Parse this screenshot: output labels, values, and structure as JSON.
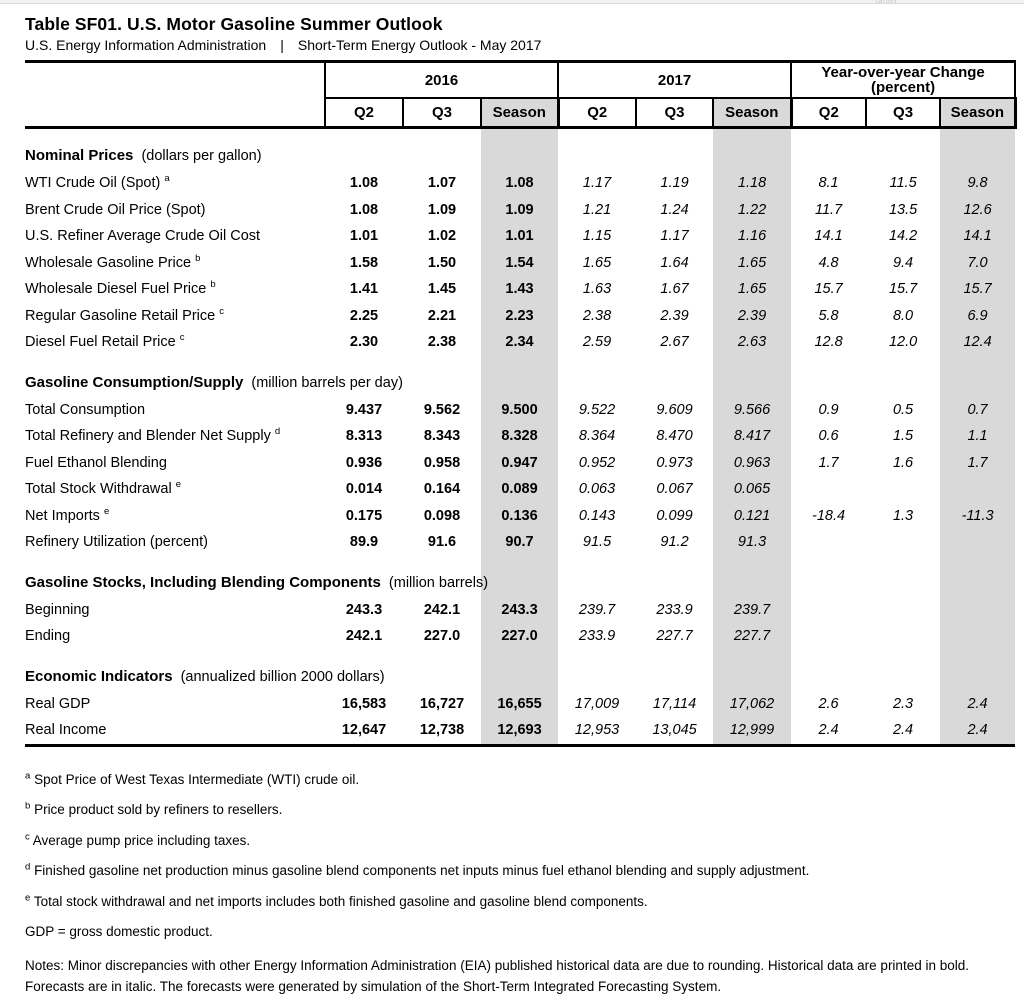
{
  "page": {
    "title": "Table SF01. U.S. Motor Gasoline Summer Outlook",
    "subtitle_left": "U.S. Energy Information Administration",
    "subtitle_separator": "|",
    "subtitle_right": "Short-Term Energy Outlook - May 2017",
    "top_artifact": "target"
  },
  "colors": {
    "season_band": "#d9d9d9",
    "rule": "#000000"
  },
  "table": {
    "col_groups": [
      {
        "line1": "2016",
        "line2": ""
      },
      {
        "line1": "2017",
        "line2": ""
      },
      {
        "line1": "Year-over-year Change",
        "line2": "(percent)"
      }
    ],
    "subheaders": [
      "Q2",
      "Q3",
      "Season",
      "Q2",
      "Q3",
      "Season",
      "Q2",
      "Q3",
      "Season"
    ],
    "sections": [
      {
        "name": "Nominal Prices",
        "unit": "(dollars per gallon)",
        "rows": [
          {
            "label": "WTI Crude Oil (Spot)",
            "sup": "a",
            "hist": [
              "1.08",
              "1.07",
              "1.08"
            ],
            "fc": [
              "1.17",
              "1.19",
              "1.18"
            ],
            "yoy": [
              "8.1",
              "11.5",
              "9.8"
            ]
          },
          {
            "label": "Brent Crude Oil Price (Spot)",
            "sup": "",
            "hist": [
              "1.08",
              "1.09",
              "1.09"
            ],
            "fc": [
              "1.21",
              "1.24",
              "1.22"
            ],
            "yoy": [
              "11.7",
              "13.5",
              "12.6"
            ]
          },
          {
            "label": "U.S. Refiner Average Crude Oil Cost",
            "sup": "",
            "hist": [
              "1.01",
              "1.02",
              "1.01"
            ],
            "fc": [
              "1.15",
              "1.17",
              "1.16"
            ],
            "yoy": [
              "14.1",
              "14.2",
              "14.1"
            ]
          },
          {
            "label": "Wholesale Gasoline Price",
            "sup": "b",
            "hist": [
              "1.58",
              "1.50",
              "1.54"
            ],
            "fc": [
              "1.65",
              "1.64",
              "1.65"
            ],
            "yoy": [
              "4.8",
              "9.4",
              "7.0"
            ]
          },
          {
            "label": "Wholesale Diesel Fuel Price",
            "sup": "b",
            "hist": [
              "1.41",
              "1.45",
              "1.43"
            ],
            "fc": [
              "1.63",
              "1.67",
              "1.65"
            ],
            "yoy": [
              "15.7",
              "15.7",
              "15.7"
            ]
          },
          {
            "label": "Regular Gasoline Retail Price",
            "sup": "c",
            "hist": [
              "2.25",
              "2.21",
              "2.23"
            ],
            "fc": [
              "2.38",
              "2.39",
              "2.39"
            ],
            "yoy": [
              "5.8",
              "8.0",
              "6.9"
            ]
          },
          {
            "label": "Diesel Fuel Retail Price",
            "sup": "c",
            "hist": [
              "2.30",
              "2.38",
              "2.34"
            ],
            "fc": [
              "2.59",
              "2.67",
              "2.63"
            ],
            "yoy": [
              "12.8",
              "12.0",
              "12.4"
            ]
          }
        ]
      },
      {
        "name": "Gasoline Consumption/Supply",
        "unit": "(million barrels per day)",
        "rows": [
          {
            "label": "Total Consumption",
            "sup": "",
            "hist": [
              "9.437",
              "9.562",
              "9.500"
            ],
            "fc": [
              "9.522",
              "9.609",
              "9.566"
            ],
            "yoy": [
              "0.9",
              "0.5",
              "0.7"
            ]
          },
          {
            "label": "Total Refinery and Blender Net Supply",
            "sup": "d",
            "hist": [
              "8.313",
              "8.343",
              "8.328"
            ],
            "fc": [
              "8.364",
              "8.470",
              "8.417"
            ],
            "yoy": [
              "0.6",
              "1.5",
              "1.1"
            ]
          },
          {
            "label": "Fuel Ethanol Blending",
            "sup": "",
            "hist": [
              "0.936",
              "0.958",
              "0.947"
            ],
            "fc": [
              "0.952",
              "0.973",
              "0.963"
            ],
            "yoy": [
              "1.7",
              "1.6",
              "1.7"
            ]
          },
          {
            "label": "Total Stock Withdrawal",
            "sup": "e",
            "hist": [
              "0.014",
              "0.164",
              "0.089"
            ],
            "fc": [
              "0.063",
              "0.067",
              "0.065"
            ],
            "yoy": [
              "",
              "",
              ""
            ]
          },
          {
            "label": "Net Imports",
            "sup": "e",
            "hist": [
              "0.175",
              "0.098",
              "0.136"
            ],
            "fc": [
              "0.143",
              "0.099",
              "0.121"
            ],
            "yoy": [
              "-18.4",
              "1.3",
              "-11.3"
            ]
          },
          {
            "label": "Refinery Utilization (percent)",
            "sup": "",
            "hist": [
              "89.9",
              "91.6",
              "90.7"
            ],
            "fc": [
              "91.5",
              "91.2",
              "91.3"
            ],
            "yoy": [
              "",
              "",
              ""
            ]
          }
        ]
      },
      {
        "name": "Gasoline Stocks, Including Blending Components",
        "unit": "(million barrels)",
        "rows": [
          {
            "label": "Beginning",
            "sup": "",
            "hist": [
              "243.3",
              "242.1",
              "243.3"
            ],
            "fc": [
              "239.7",
              "233.9",
              "239.7"
            ],
            "yoy": [
              "",
              "",
              ""
            ]
          },
          {
            "label": "Ending",
            "sup": "",
            "hist": [
              "242.1",
              "227.0",
              "227.0"
            ],
            "fc": [
              "233.9",
              "227.7",
              "227.7"
            ],
            "yoy": [
              "",
              "",
              ""
            ]
          }
        ]
      },
      {
        "name": "Economic Indicators",
        "unit": "(annualized billion 2000 dollars)",
        "rows": [
          {
            "label": "Real GDP",
            "sup": "",
            "hist": [
              "16,583",
              "16,727",
              "16,655"
            ],
            "fc": [
              "17,009",
              "17,114",
              "17,062"
            ],
            "yoy": [
              "2.6",
              "2.3",
              "2.4"
            ]
          },
          {
            "label": "Real Income",
            "sup": "",
            "hist": [
              "12,647",
              "12,738",
              "12,693"
            ],
            "fc": [
              "12,953",
              "13,045",
              "12,999"
            ],
            "yoy": [
              "2.4",
              "2.4",
              "2.4"
            ]
          }
        ]
      }
    ]
  },
  "footnotes": [
    {
      "marker": "a",
      "text": "Spot Price of West Texas Intermediate (WTI) crude oil."
    },
    {
      "marker": "b",
      "text": "Price product sold by refiners to resellers."
    },
    {
      "marker": "c",
      "text": "Average pump price including taxes."
    },
    {
      "marker": "d",
      "text": "Finished gasoline net production minus gasoline blend components net inputs minus fuel ethanol blending and supply adjustment."
    },
    {
      "marker": "e",
      "text": "Total stock withdrawal and net imports includes both finished gasoline and gasoline blend components."
    },
    {
      "marker": "",
      "text": "GDP = gross domestic product."
    }
  ],
  "notes": "Notes: Minor discrepancies with other Energy Information Administration (EIA) published historical data are due to rounding. Historical data are printed in bold. Forecasts are in italic. The forecasts were generated by simulation of the Short-Term Integrated Forecasting System."
}
